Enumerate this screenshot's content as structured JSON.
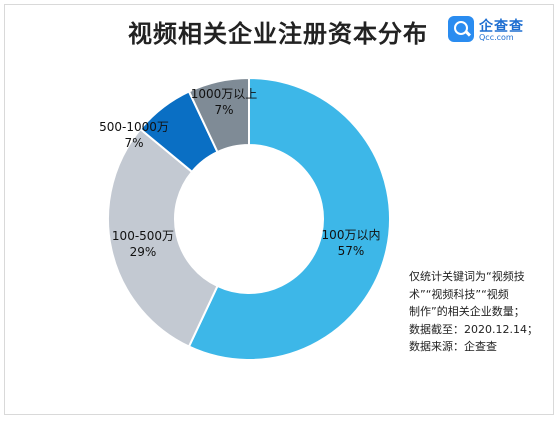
{
  "title": "视频相关企业注册资本分布",
  "logo": {
    "name": "企查查",
    "domain": "Qcc.com",
    "icon": "magnifier-icon"
  },
  "note": {
    "lines": [
      "仅统计关键词为“视频技",
      "术”“视频科技”“视频",
      "制作”的相关企业数量；",
      "数据截至：2020.12.14；",
      "数据来源：企查查"
    ]
  },
  "chart_data": {
    "type": "pie",
    "style": "donut",
    "slices": [
      {
        "label": "100万以内",
        "value": 57,
        "value_label": "57%",
        "color": "#3db7e8"
      },
      {
        "label": "100-500万",
        "value": 29,
        "value_label": "29%",
        "color": "#c3c9d2"
      },
      {
        "label": "500-1000万",
        "value": 7,
        "value_label": "7%",
        "color": "#0a6fc4"
      },
      {
        "label": "1000万以上",
        "value": 7,
        "value_label": "7%",
        "color": "#7f8b96"
      }
    ]
  }
}
